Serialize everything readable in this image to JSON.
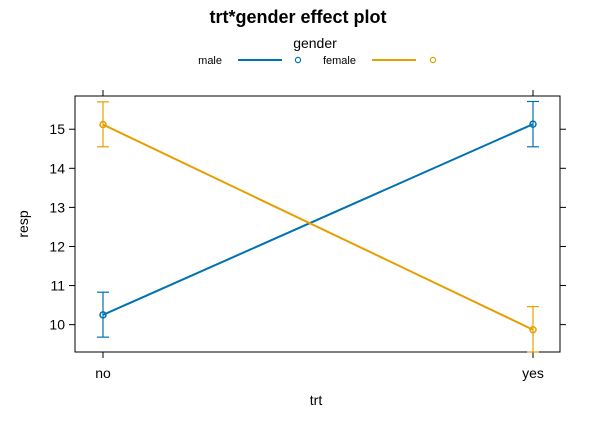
{
  "chart_data": {
    "type": "line",
    "title": "trt*gender effect plot",
    "xlabel": "trt",
    "ylabel": "resp",
    "categories": [
      "no",
      "yes"
    ],
    "ylim": [
      9.3,
      15.85
    ],
    "yticks": [
      10,
      11,
      12,
      13,
      14,
      15
    ],
    "grid": false,
    "legend": {
      "title": "gender",
      "placement": "top"
    },
    "series": [
      {
        "name": "male",
        "color": "#0072B2",
        "values": [
          10.25,
          15.13
        ],
        "lower": [
          9.68,
          14.55
        ],
        "upper": [
          10.83,
          15.71
        ]
      },
      {
        "name": "female",
        "color": "#E69F00",
        "values": [
          15.12,
          9.87
        ],
        "lower": [
          14.55,
          9.3
        ],
        "upper": [
          15.7,
          10.46
        ]
      }
    ]
  }
}
